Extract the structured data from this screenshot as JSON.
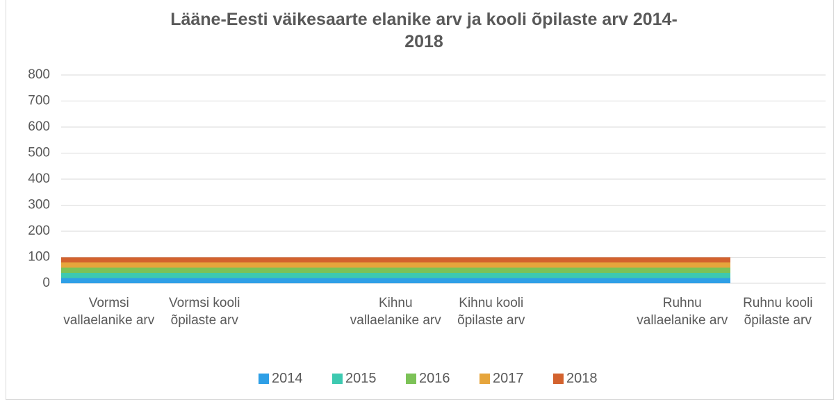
{
  "chart_data": {
    "type": "bar",
    "stacked": true,
    "title": "Lääne-Eesti väikesaarte elanike arv ja kooli õpilaste arv 2014-\n2018",
    "categories": [
      "Vormsi vallaelanike arv",
      "Vormsi kooli õpilaste arv",
      null,
      "Kihnu vallaelanike arv",
      "Kihnu kooli õpilaste arv",
      null,
      "Ruhnu vallaelanike arv",
      "Ruhnu kooli õpilaste arv"
    ],
    "series": [
      {
        "name": "2014",
        "color": "#2e9fe6",
        "values": [
          20,
          20,
          20,
          20,
          20,
          20,
          20,
          null
        ]
      },
      {
        "name": "2015",
        "color": "#3dc9b0",
        "values": [
          20,
          20,
          20,
          20,
          20,
          20,
          20,
          null
        ]
      },
      {
        "name": "2016",
        "color": "#7cc257",
        "values": [
          20,
          20,
          20,
          20,
          20,
          20,
          20,
          null
        ]
      },
      {
        "name": "2017",
        "color": "#e6a53c",
        "values": [
          20,
          20,
          20,
          20,
          20,
          20,
          20,
          null
        ]
      },
      {
        "name": "2018",
        "color": "#d3622e",
        "values": [
          20,
          20,
          20,
          20,
          20,
          20,
          20,
          null
        ]
      }
    ],
    "ylim": [
      0,
      800
    ],
    "yticks": [
      0,
      100,
      200,
      300,
      400,
      500,
      600,
      700,
      800
    ],
    "grid": true,
    "legend": "bottom"
  }
}
